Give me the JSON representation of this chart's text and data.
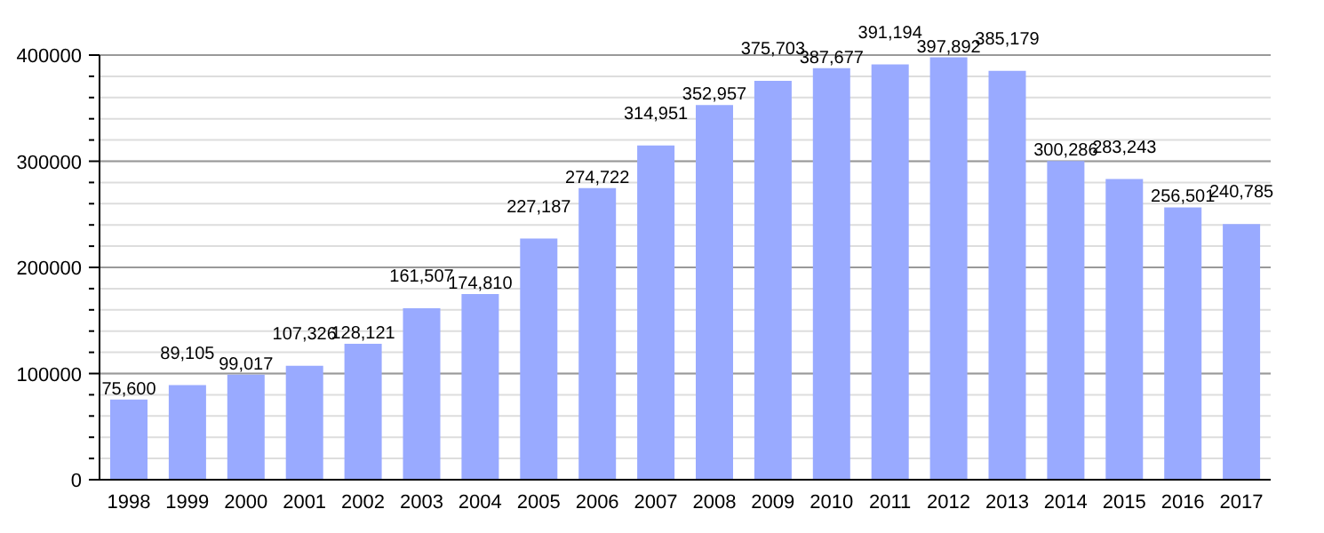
{
  "chart_data": {
    "type": "bar",
    "categories": [
      "1998",
      "1999",
      "2000",
      "2001",
      "2002",
      "2003",
      "2004",
      "2005",
      "2006",
      "2007",
      "2008",
      "2009",
      "2010",
      "2011",
      "2012",
      "2013",
      "2014",
      "2015",
      "2016",
      "2017"
    ],
    "values": [
      75600,
      89105,
      99017,
      107326,
      128121,
      161507,
      174810,
      227187,
      274722,
      314951,
      352957,
      375703,
      387677,
      391194,
      397892,
      385179,
      300286,
      283243,
      256501,
      240785
    ],
    "value_labels": [
      "75,600",
      "89,105",
      "99,017",
      "107,326",
      "128,121",
      "161,507",
      "174,810",
      "227,187",
      "274,722",
      "314,951",
      "352,957",
      "375,703",
      "387,677",
      "391,194",
      "397,892",
      "385,179",
      "300,286",
      "283,243",
      "256,501",
      "240,785"
    ],
    "color": "#99aaff",
    "ylim": [
      0,
      400000
    ],
    "yticks": [
      0,
      {
        "value": 20000,
        "label": null
      },
      {
        "value": 40000,
        "label": null
      },
      {
        "value": 60000,
        "label": null
      },
      {
        "value": 80000,
        "label": null
      },
      100000,
      {
        "value": 120000,
        "label": null
      },
      {
        "value": 140000,
        "label": null
      },
      {
        "value": 160000,
        "label": null
      },
      {
        "value": 180000,
        "label": null
      },
      200000,
      {
        "value": 220000,
        "label": null
      },
      {
        "value": 240000,
        "label": null
      },
      {
        "value": 260000,
        "label": null
      },
      {
        "value": 280000,
        "label": null
      },
      300000,
      {
        "value": 320000,
        "label": null
      },
      {
        "value": 340000,
        "label": null
      },
      {
        "value": 360000,
        "label": null
      },
      {
        "value": 380000,
        "label": null
      },
      400000
    ],
    "grid": "y",
    "legend": false
  }
}
